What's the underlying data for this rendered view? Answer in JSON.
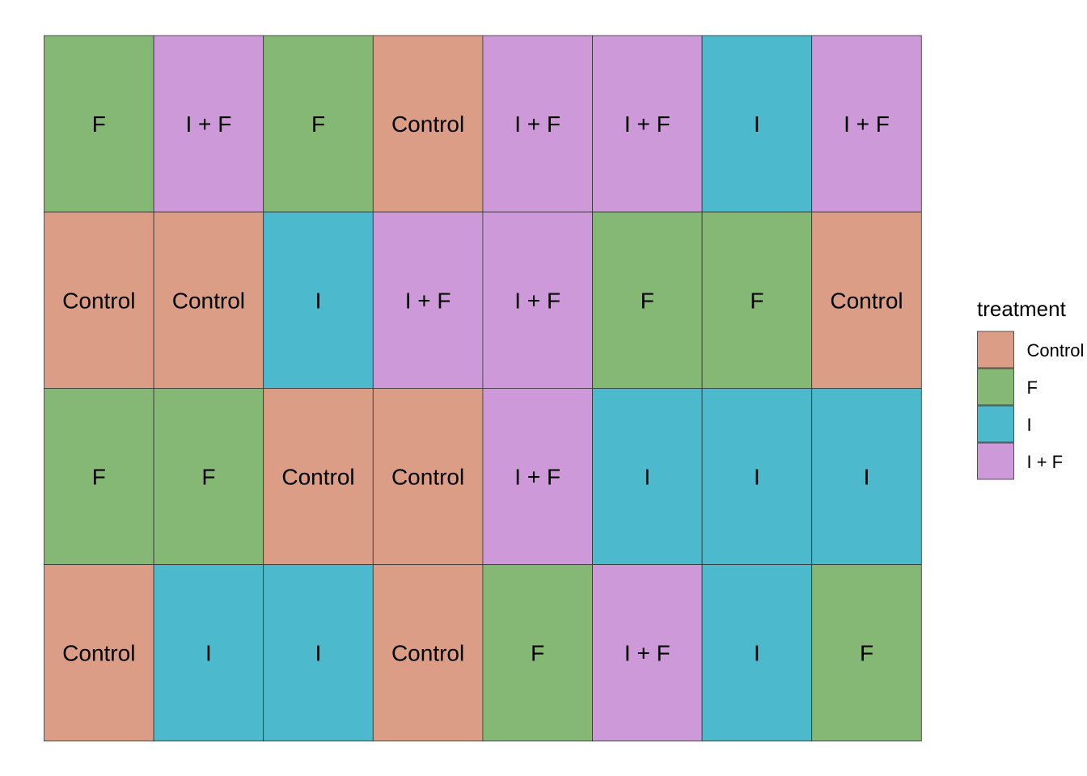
{
  "chart_data": {
    "type": "heatmap",
    "title": "",
    "xlabel": "",
    "ylabel": "",
    "grid": false,
    "rows": 4,
    "cols": 8,
    "cells": [
      [
        "F",
        "I + F",
        "F",
        "Control",
        "I + F",
        "I + F",
        "I",
        "I + F"
      ],
      [
        "Control",
        "Control",
        "I",
        "I + F",
        "I + F",
        "F",
        "F",
        "Control"
      ],
      [
        "F",
        "F",
        "Control",
        "Control",
        "I + F",
        "I",
        "I",
        "I"
      ],
      [
        "Control",
        "I",
        "I",
        "Control",
        "F",
        "I + F",
        "I",
        "F"
      ]
    ],
    "legend": {
      "title": "treatment",
      "position": "right",
      "entries": [
        {
          "label": "Control",
          "color": "#DB9D85"
        },
        {
          "label": "F",
          "color": "#86B875"
        },
        {
          "label": "I",
          "color": "#4CB9CC"
        },
        {
          "label": "I + F",
          "color": "#CD99D8"
        }
      ]
    }
  }
}
